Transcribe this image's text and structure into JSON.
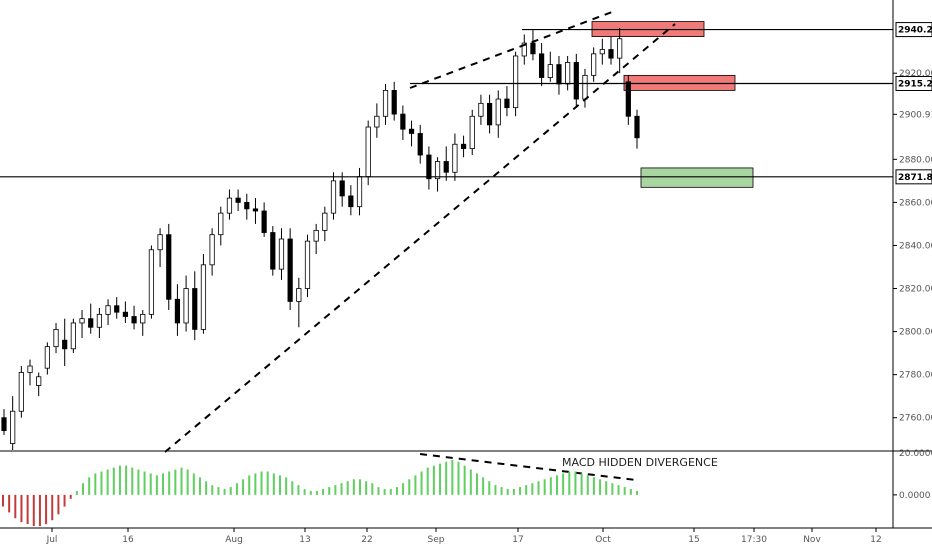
{
  "chart_data": {
    "type": "candlestick",
    "price_axis": {
      "ticks": [
        "2760.00",
        "2780.00",
        "2800.00",
        "2820.00",
        "2840.00",
        "2860.00",
        "2880.00",
        "2900.91",
        "2920.00"
      ],
      "ylim": [
        2745,
        2954
      ]
    },
    "price_tags": [
      "2940.26",
      "2915.23",
      "2871.87"
    ],
    "horizontal_levels": [
      2940.26,
      2915.23,
      2871.87
    ],
    "date_ticks": [
      "Jul",
      "16",
      "Aug",
      "13",
      "22",
      "Sep",
      "17",
      "Oct",
      "15",
      "17:30",
      "Nov",
      "12"
    ],
    "candles": [
      [
        2760,
        2764,
        2752,
        2754
      ],
      [
        2748,
        2770,
        2745,
        2763
      ],
      [
        2763,
        2784,
        2760,
        2781
      ],
      [
        2781,
        2787,
        2775,
        2784
      ],
      [
        2775,
        2781,
        2770,
        2779
      ],
      [
        2783,
        2795,
        2780,
        2793
      ],
      [
        2793,
        2804,
        2790,
        2801
      ],
      [
        2796,
        2806,
        2784,
        2792
      ],
      [
        2792,
        2806,
        2790,
        2804
      ],
      [
        2804,
        2810,
        2797,
        2806
      ],
      [
        2806,
        2813,
        2799,
        2802
      ],
      [
        2802,
        2811,
        2797,
        2808
      ],
      [
        2808,
        2815,
        2803,
        2812
      ],
      [
        2812,
        2816,
        2806,
        2809
      ],
      [
        2809,
        2814,
        2804,
        2807
      ],
      [
        2807,
        2812,
        2801,
        2804
      ],
      [
        2804,
        2810,
        2798,
        2808
      ],
      [
        2808,
        2840,
        2806,
        2838
      ],
      [
        2838,
        2848,
        2830,
        2845
      ],
      [
        2845,
        2850,
        2810,
        2815
      ],
      [
        2815,
        2822,
        2798,
        2804
      ],
      [
        2804,
        2826,
        2800,
        2820
      ],
      [
        2820,
        2828,
        2796,
        2801
      ],
      [
        2801,
        2836,
        2799,
        2831
      ],
      [
        2831,
        2848,
        2826,
        2845
      ],
      [
        2845,
        2858,
        2840,
        2855
      ],
      [
        2855,
        2866,
        2852,
        2862
      ],
      [
        2862,
        2866,
        2856,
        2860
      ],
      [
        2860,
        2864,
        2852,
        2857
      ],
      [
        2857,
        2862,
        2850,
        2856
      ],
      [
        2856,
        2860,
        2844,
        2846
      ],
      [
        2846,
        2849,
        2826,
        2829
      ],
      [
        2829,
        2848,
        2824,
        2843
      ],
      [
        2843,
        2848,
        2810,
        2814
      ],
      [
        2814,
        2825,
        2802,
        2820
      ],
      [
        2820,
        2845,
        2816,
        2842
      ],
      [
        2842,
        2850,
        2836,
        2847
      ],
      [
        2847,
        2858,
        2842,
        2855
      ],
      [
        2855,
        2874,
        2852,
        2870
      ],
      [
        2870,
        2874,
        2858,
        2863
      ],
      [
        2863,
        2868,
        2854,
        2858
      ],
      [
        2858,
        2876,
        2854,
        2872
      ],
      [
        2872,
        2898,
        2868,
        2895
      ],
      [
        2895,
        2906,
        2890,
        2900
      ],
      [
        2900,
        2915,
        2896,
        2912
      ],
      [
        2912,
        2916,
        2898,
        2901
      ],
      [
        2901,
        2905,
        2889,
        2894
      ],
      [
        2894,
        2898,
        2886,
        2892
      ],
      [
        2892,
        2896,
        2878,
        2882
      ],
      [
        2882,
        2886,
        2866,
        2871
      ],
      [
        2871,
        2881,
        2865,
        2879
      ],
      [
        2879,
        2886,
        2870,
        2874
      ],
      [
        2874,
        2892,
        2870,
        2887
      ],
      [
        2887,
        2891,
        2881,
        2885
      ],
      [
        2885,
        2903,
        2882,
        2900
      ],
      [
        2900,
        2910,
        2896,
        2906
      ],
      [
        2906,
        2910,
        2892,
        2896
      ],
      [
        2896,
        2912,
        2890,
        2908
      ],
      [
        2908,
        2914,
        2900,
        2904
      ],
      [
        2904,
        2930,
        2900,
        2928
      ],
      [
        2928,
        2938,
        2924,
        2934
      ],
      [
        2934,
        2940,
        2926,
        2929
      ],
      [
        2929,
        2934,
        2914,
        2918
      ],
      [
        2918,
        2930,
        2916,
        2924
      ],
      [
        2924,
        2928,
        2910,
        2915
      ],
      [
        2915,
        2928,
        2912,
        2925
      ],
      [
        2925,
        2929,
        2904,
        2908
      ],
      [
        2908,
        2922,
        2904,
        2919
      ],
      [
        2919,
        2932,
        2916,
        2929
      ],
      [
        2929,
        2936,
        2924,
        2931
      ],
      [
        2931,
        2937,
        2924,
        2927
      ],
      [
        2927,
        2941,
        2920,
        2936
      ],
      [
        2916,
        2919,
        2896,
        2900
      ],
      [
        2900,
        2903,
        2885,
        2890
      ]
    ],
    "macd_histogram": {
      "zero_tick": "0.0000",
      "top_tick": "20.0000",
      "ylim": [
        -17,
        22
      ],
      "values": [
        -6,
        -9,
        -12,
        -14,
        -15,
        -16,
        -16,
        -15,
        -13,
        -10,
        -6,
        -2,
        2,
        6,
        9,
        11,
        12,
        13,
        14,
        15,
        15,
        14,
        13,
        12,
        11,
        10,
        11,
        12,
        13,
        14,
        13,
        11,
        9,
        7,
        5,
        4,
        3,
        4,
        6,
        8,
        10,
        11,
        12,
        12,
        11,
        10,
        9,
        7,
        5,
        3,
        2,
        2,
        3,
        4,
        5,
        6,
        7,
        8,
        8,
        7,
        6,
        4,
        3,
        3,
        4,
        6,
        8,
        10,
        12,
        14,
        15,
        16,
        17,
        18,
        17,
        15,
        13,
        11,
        9,
        7,
        5,
        4,
        3,
        3,
        4,
        5,
        6,
        7,
        8,
        9,
        10,
        11,
        12,
        12,
        11,
        10,
        9,
        8,
        7,
        6,
        5,
        4,
        3,
        2
      ]
    },
    "zones": [
      {
        "color": "#f07a7a",
        "top": 2944,
        "bottom": 2937
      },
      {
        "color": "#f07a7a",
        "top": 2919,
        "bottom": 2912
      },
      {
        "color": "#a9d5a0",
        "top": 2876,
        "bottom": 2867
      }
    ],
    "annotations": [
      "MACD HIDDEN DIVERGENCE"
    ],
    "colors": {
      "up_body": "#ffffff",
      "down_body": "#000000",
      "macd_positive": "#5fcf5f",
      "macd_negative": "#c23a3a"
    }
  }
}
